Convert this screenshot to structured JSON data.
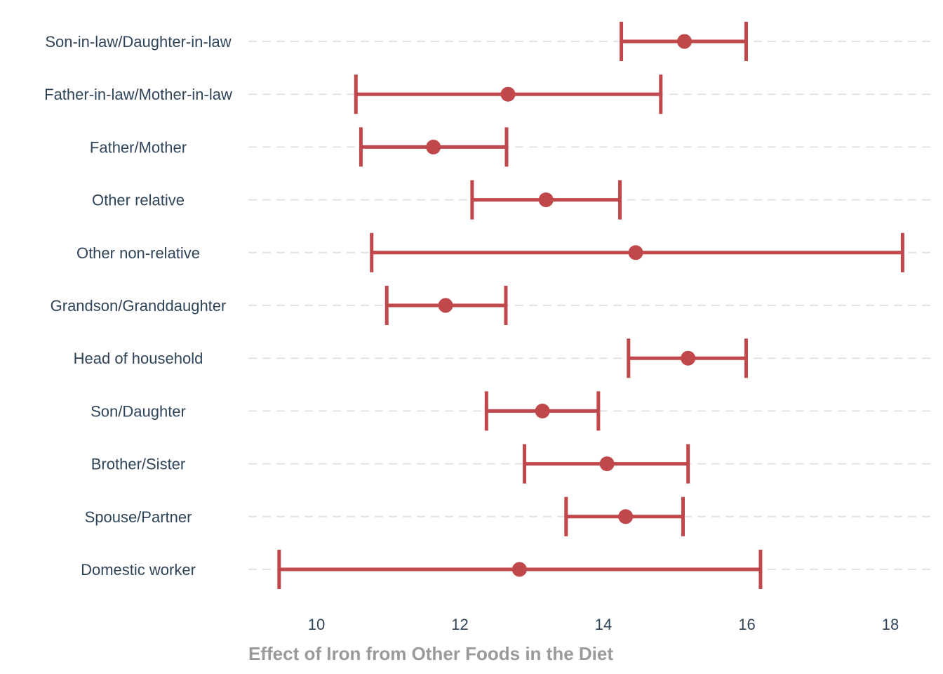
{
  "chart_data": {
    "type": "errorbar",
    "orientation": "horizontal",
    "xlabel": "Effect of Iron from Other Foods in the Diet",
    "ylabel": "",
    "xlim": [
      9.05,
      18.3
    ],
    "xticks": [
      10,
      12,
      14,
      16,
      18
    ],
    "grid": "horizontal-dashed",
    "colors": {
      "series": "#c0474a",
      "category_text": "#2f4458",
      "axis_title": "#9a9a9a",
      "grid": "#e3e3e3"
    },
    "categories": [
      "Son-in-law/Daughter-in-law",
      "Father-in-law/Mother-in-law",
      "Father/Mother",
      "Other relative",
      "Other non-relative",
      "Grandson/Granddaughter",
      "Head of household",
      "Son/Daughter",
      "Brother/Sister",
      "Spouse/Partner",
      "Domestic worker"
    ],
    "estimate": [
      15.13,
      12.67,
      11.63,
      13.2,
      14.45,
      11.8,
      15.18,
      13.15,
      14.05,
      14.31,
      12.83
    ],
    "lower": [
      14.25,
      10.55,
      10.62,
      12.17,
      10.77,
      10.98,
      14.35,
      12.37,
      12.9,
      13.48,
      9.48
    ],
    "upper": [
      15.99,
      14.8,
      12.65,
      14.23,
      18.17,
      12.64,
      15.99,
      13.93,
      15.18,
      15.11,
      16.19
    ]
  }
}
